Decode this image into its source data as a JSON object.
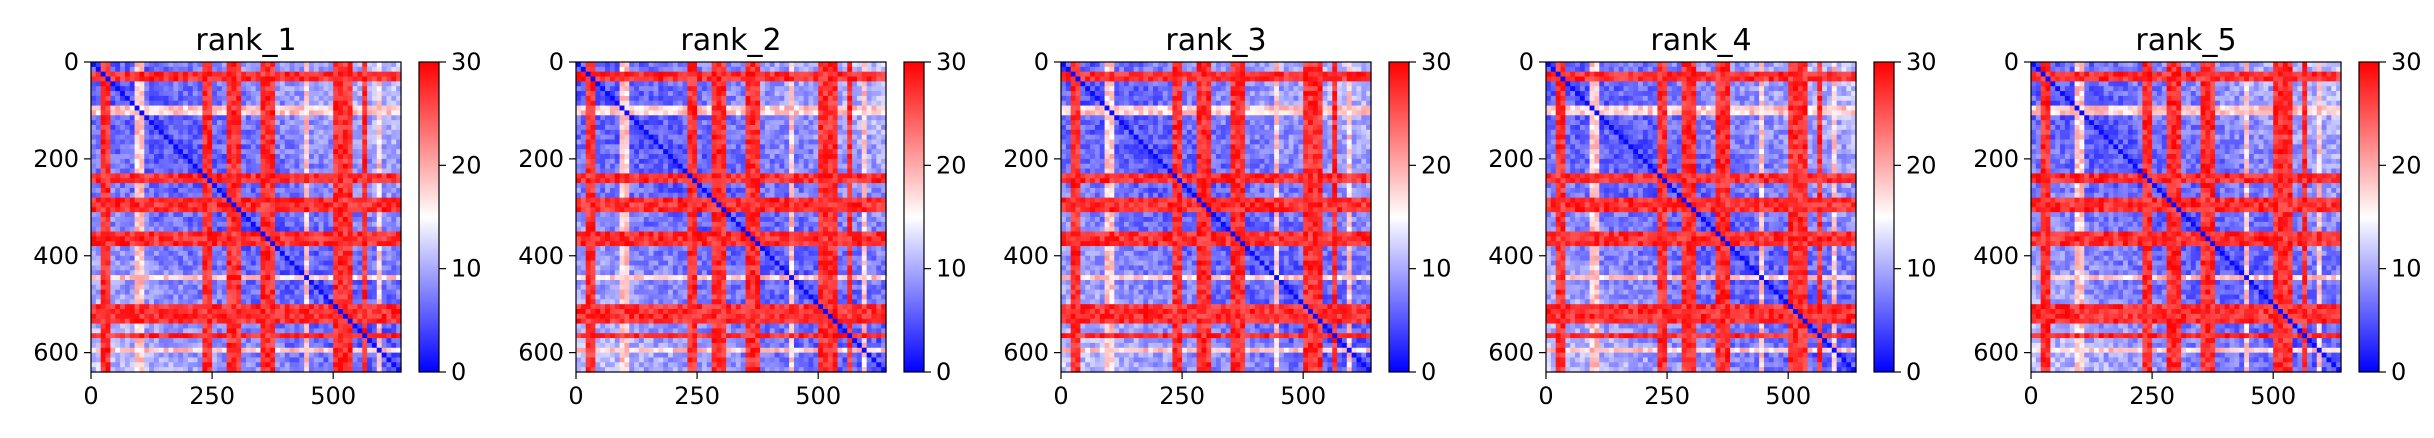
{
  "figure": {
    "panel_count": 5,
    "colormap": [
      "#0000ff",
      "#ffffff",
      "#ff0000"
    ],
    "colormap_name": "bwr"
  },
  "chart_data": [
    {
      "type": "heatmap",
      "title": "rank_1",
      "xlabel": "",
      "ylabel": "",
      "xlim": [
        0,
        640
      ],
      "ylim": [
        640,
        0
      ],
      "x_ticks": [
        0,
        250,
        500
      ],
      "x_tick_labels": [
        "0",
        "250",
        "500"
      ],
      "y_ticks": [
        0,
        200,
        400,
        600
      ],
      "y_tick_labels": [
        "0",
        "200",
        "400",
        "600"
      ],
      "colorbar": {
        "vmin": 0,
        "vmax": 30,
        "ticks": [
          0,
          10,
          20,
          30
        ],
        "tick_labels": [
          "0",
          "10",
          "20",
          "30"
        ]
      },
      "matrix_size": 640,
      "high_bands": [
        [
          25,
          35
        ],
        [
          232,
          248
        ],
        [
          282,
          312
        ],
        [
          352,
          378
        ],
        [
          502,
          542
        ],
        [
          562,
          572
        ]
      ],
      "mid_bands": [
        [
          95,
          105
        ],
        [
          440,
          448
        ],
        [
          590,
          600
        ]
      ]
    },
    {
      "type": "heatmap",
      "title": "rank_2",
      "xlabel": "",
      "ylabel": "",
      "xlim": [
        0,
        640
      ],
      "ylim": [
        640,
        0
      ],
      "x_ticks": [
        0,
        250,
        500
      ],
      "x_tick_labels": [
        "0",
        "250",
        "500"
      ],
      "y_ticks": [
        0,
        200,
        400,
        600
      ],
      "y_tick_labels": [
        "0",
        "200",
        "400",
        "600"
      ],
      "colorbar": {
        "vmin": 0,
        "vmax": 30,
        "ticks": [
          0,
          10,
          20,
          30
        ],
        "tick_labels": [
          "0",
          "10",
          "20",
          "30"
        ]
      },
      "matrix_size": 640,
      "high_bands": [
        [
          25,
          35
        ],
        [
          232,
          248
        ],
        [
          282,
          312
        ],
        [
          352,
          378
        ],
        [
          502,
          542
        ],
        [
          562,
          572
        ]
      ],
      "mid_bands": [
        [
          95,
          105
        ],
        [
          440,
          448
        ],
        [
          590,
          600
        ]
      ]
    },
    {
      "type": "heatmap",
      "title": "rank_3",
      "xlabel": "",
      "ylabel": "",
      "xlim": [
        0,
        640
      ],
      "ylim": [
        640,
        0
      ],
      "x_ticks": [
        0,
        250,
        500
      ],
      "x_tick_labels": [
        "0",
        "250",
        "500"
      ],
      "y_ticks": [
        0,
        200,
        400,
        600
      ],
      "y_tick_labels": [
        "0",
        "200",
        "400",
        "600"
      ],
      "colorbar": {
        "vmin": 0,
        "vmax": 30,
        "ticks": [
          0,
          10,
          20,
          30
        ],
        "tick_labels": [
          "0",
          "10",
          "20",
          "30"
        ]
      },
      "matrix_size": 640,
      "high_bands": [
        [
          25,
          35
        ],
        [
          232,
          248
        ],
        [
          282,
          312
        ],
        [
          352,
          378
        ],
        [
          502,
          542
        ],
        [
          562,
          572
        ]
      ],
      "mid_bands": [
        [
          95,
          105
        ],
        [
          440,
          448
        ],
        [
          590,
          600
        ]
      ]
    },
    {
      "type": "heatmap",
      "title": "rank_4",
      "xlabel": "",
      "ylabel": "",
      "xlim": [
        0,
        640
      ],
      "ylim": [
        640,
        0
      ],
      "x_ticks": [
        0,
        250,
        500
      ],
      "x_tick_labels": [
        "0",
        "250",
        "500"
      ],
      "y_ticks": [
        0,
        200,
        400,
        600
      ],
      "y_tick_labels": [
        "0",
        "200",
        "400",
        "600"
      ],
      "colorbar": {
        "vmin": 0,
        "vmax": 30,
        "ticks": [
          0,
          10,
          20,
          30
        ],
        "tick_labels": [
          "0",
          "10",
          "20",
          "30"
        ]
      },
      "matrix_size": 640,
      "high_bands": [
        [
          25,
          35
        ],
        [
          232,
          248
        ],
        [
          282,
          312
        ],
        [
          352,
          378
        ],
        [
          502,
          542
        ],
        [
          562,
          572
        ]
      ],
      "mid_bands": [
        [
          95,
          105
        ],
        [
          440,
          448
        ],
        [
          590,
          600
        ]
      ]
    },
    {
      "type": "heatmap",
      "title": "rank_5",
      "xlabel": "",
      "ylabel": "",
      "xlim": [
        0,
        640
      ],
      "ylim": [
        640,
        0
      ],
      "x_ticks": [
        0,
        250,
        500
      ],
      "x_tick_labels": [
        "0",
        "250",
        "500"
      ],
      "y_ticks": [
        0,
        200,
        400,
        600
      ],
      "y_tick_labels": [
        "0",
        "200",
        "400",
        "600"
      ],
      "colorbar": {
        "vmin": 0,
        "vmax": 30,
        "ticks": [
          0,
          10,
          20,
          30
        ],
        "tick_labels": [
          "0",
          "10",
          "20",
          "30"
        ]
      },
      "matrix_size": 640,
      "high_bands": [
        [
          25,
          35
        ],
        [
          232,
          248
        ],
        [
          282,
          312
        ],
        [
          352,
          378
        ],
        [
          502,
          542
        ],
        [
          562,
          572
        ]
      ],
      "mid_bands": [
        [
          95,
          105
        ],
        [
          440,
          448
        ],
        [
          590,
          600
        ]
      ]
    }
  ]
}
